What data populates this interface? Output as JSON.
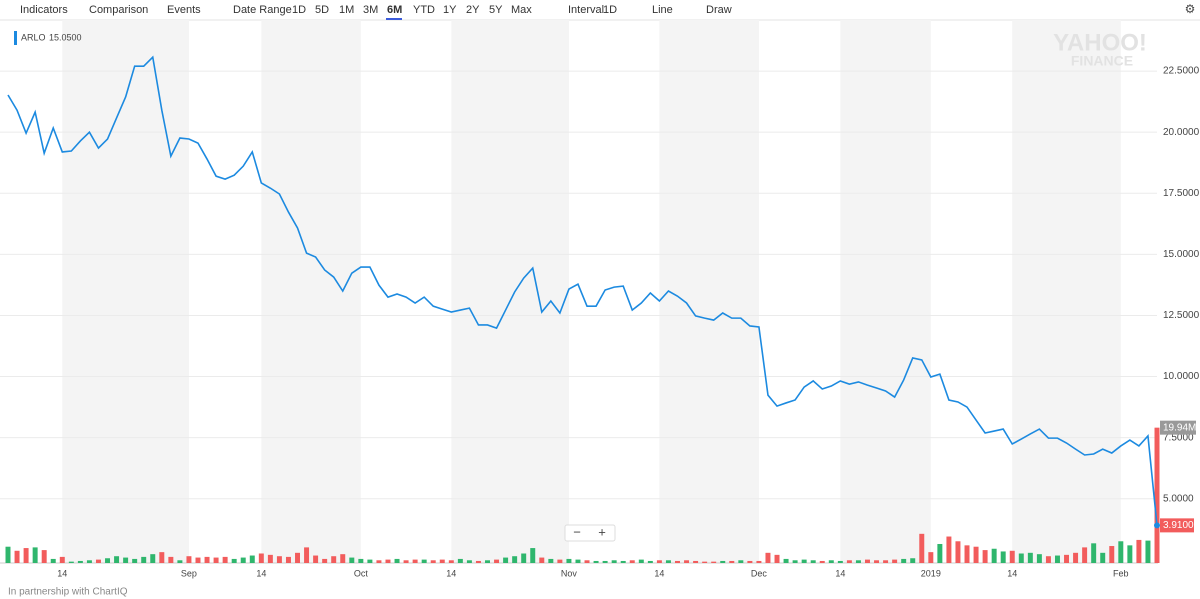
{
  "toolbar": [
    "Indicators",
    "Comparison",
    "Events",
    "Date Range",
    "1D",
    "5D",
    "1M",
    "3M",
    "6M",
    "YTD",
    "1Y",
    "2Y",
    "5Y",
    "Max",
    "Interval",
    "1D",
    "Line",
    "Draw"
  ],
  "watermark": [
    "YAHOO!",
    "FINANCE"
  ],
  "footer": "In partnership with ChartIQ",
  "chart_data": {
    "type": "line",
    "legend_value": "15.0500",
    "categories": [
      null,
      null,
      null,
      null,
      null,
      null,
      "14",
      null,
      null,
      null,
      null,
      null,
      null,
      null,
      null,
      null,
      null,
      null,
      null,
      null,
      "Sep",
      null,
      null,
      null,
      null,
      null,
      null,
      null,
      "14",
      null,
      null,
      null,
      null,
      null,
      null,
      null,
      null,
      null,
      null,
      "Oct",
      null,
      null,
      null,
      null,
      null,
      null,
      null,
      null,
      null,
      "14",
      null,
      null,
      null,
      null,
      null,
      null,
      null,
      null,
      null,
      null,
      null,
      null,
      "Nov",
      null,
      null,
      null,
      null,
      null,
      null,
      null,
      null,
      null,
      "14",
      null,
      null,
      null,
      null,
      null,
      null,
      null,
      null,
      null,
      null,
      "Dec",
      null,
      null,
      null,
      null,
      null,
      null,
      null,
      null,
      "14",
      null,
      null,
      null,
      null,
      null,
      null,
      null,
      null,
      null,
      "2019",
      null,
      null,
      null,
      null,
      null,
      null,
      null,
      null,
      "14",
      null,
      null,
      null,
      null,
      null,
      null,
      null,
      null,
      null,
      null,
      null,
      "Feb",
      null,
      null,
      null,
      null
    ],
    "series": [
      {
        "name": "ARLO",
        "color": "#1c8ae0",
        "values": [
          21.52,
          20.9,
          19.96,
          20.82,
          19.14,
          20.17,
          19.19,
          19.23,
          19.64,
          20.0,
          19.35,
          19.72,
          20.58,
          21.44,
          22.7,
          22.7,
          23.07,
          20.9,
          19.02,
          19.76,
          19.72,
          19.55,
          18.9,
          18.2,
          18.08,
          18.24,
          18.61,
          19.19,
          17.92,
          17.71,
          17.47,
          16.73,
          16.08,
          15.05,
          14.89,
          14.36,
          14.07,
          13.5,
          14.23,
          14.48,
          14.48,
          13.74,
          13.25,
          13.38,
          13.25,
          13.01,
          13.25,
          12.88,
          12.76,
          12.64,
          12.72,
          12.8,
          12.11,
          12.11,
          11.98,
          12.72,
          13.46,
          14.03,
          14.44,
          12.64,
          13.09,
          12.6,
          13.58,
          13.78,
          12.88,
          12.88,
          13.54,
          13.66,
          13.7,
          12.72,
          13.01,
          13.42,
          13.09,
          13.5,
          13.29,
          13.01,
          12.48,
          12.39,
          12.31,
          12.6,
          12.39,
          12.39,
          12.07,
          12.03,
          9.24,
          8.79,
          8.92,
          9.04,
          9.57,
          9.82,
          9.49,
          9.61,
          9.82,
          9.69,
          9.78,
          9.65,
          9.53,
          9.41,
          9.16,
          9.86,
          10.76,
          10.68,
          9.98,
          10.1,
          9.04,
          8.96,
          8.75,
          8.22,
          7.69,
          7.77,
          7.85,
          7.24,
          7.44,
          7.65,
          7.85,
          7.48,
          7.48,
          7.28,
          7.03,
          6.79,
          6.83,
          7.03,
          6.87,
          7.16,
          7.4,
          7.16,
          7.57,
          3.91
        ],
        "value_labels": [
          null,
          null,
          null,
          null,
          null,
          null,
          null,
          null,
          null,
          null,
          null,
          null,
          null,
          null,
          null,
          null,
          null,
          null,
          null,
          null,
          null,
          null,
          null,
          null,
          null,
          null,
          null,
          null,
          null,
          null,
          null,
          null,
          null,
          null,
          null,
          null,
          null,
          null,
          null,
          null,
          null,
          null,
          null,
          null,
          null,
          null,
          null,
          null,
          null,
          null,
          null,
          null,
          null,
          null,
          null,
          null,
          null,
          null,
          null,
          null,
          null,
          null,
          null,
          null,
          null,
          null,
          null,
          null,
          null,
          null,
          null,
          null,
          null,
          null,
          null,
          null,
          null,
          null,
          null,
          null,
          null,
          null,
          null,
          null,
          null,
          null,
          null,
          null,
          null,
          null,
          null,
          null,
          null,
          null,
          null,
          null,
          null,
          null,
          null,
          null,
          null,
          null,
          null,
          null,
          null,
          null,
          null,
          null,
          null,
          null,
          null,
          null,
          null,
          null,
          null,
          null,
          null,
          null,
          null,
          null,
          null,
          null,
          null,
          null,
          null,
          null,
          null,
          "3.9100"
        ]
      },
      {
        "name": "Volume",
        "axis": "y2",
        "up_color": "#2fb66d",
        "down_color": "#f25c5c",
        "values": [
          2.4,
          1.8,
          2.2,
          2.3,
          1.9,
          0.6,
          0.9,
          0.2,
          0.3,
          0.4,
          0.5,
          0.7,
          1.0,
          0.8,
          0.6,
          0.9,
          1.3,
          1.6,
          0.9,
          0.4,
          1.0,
          0.8,
          0.9,
          0.8,
          0.9,
          0.6,
          0.8,
          1.1,
          1.4,
          1.2,
          1.0,
          0.9,
          1.5,
          2.3,
          1.1,
          0.6,
          1.0,
          1.3,
          0.8,
          0.6,
          0.5,
          0.4,
          0.5,
          0.6,
          0.4,
          0.5,
          0.5,
          0.4,
          0.5,
          0.4,
          0.6,
          0.4,
          0.3,
          0.4,
          0.5,
          0.8,
          1.0,
          1.4,
          2.2,
          0.8,
          0.6,
          0.5,
          0.6,
          0.5,
          0.4,
          0.3,
          0.3,
          0.4,
          0.3,
          0.4,
          0.5,
          0.3,
          0.4,
          0.4,
          0.3,
          0.4,
          0.3,
          0.2,
          0.2,
          0.3,
          0.3,
          0.4,
          0.3,
          0.3,
          1.5,
          1.2,
          0.6,
          0.4,
          0.5,
          0.4,
          0.3,
          0.4,
          0.3,
          0.4,
          0.4,
          0.5,
          0.4,
          0.4,
          0.5,
          0.6,
          0.7,
          4.3,
          1.6,
          2.8,
          3.9,
          3.2,
          2.6,
          2.4,
          1.9,
          2.1,
          1.7,
          1.8,
          1.4,
          1.5,
          1.3,
          1.0,
          1.1,
          1.2,
          1.5,
          2.3,
          2.9,
          1.5,
          2.5,
          3.2,
          2.6,
          3.4,
          3.3,
          19.94
        ],
        "value_labels": [
          null,
          null,
          null,
          null,
          null,
          null,
          null,
          null,
          null,
          null,
          null,
          null,
          null,
          null,
          null,
          null,
          null,
          null,
          null,
          null,
          null,
          null,
          null,
          null,
          null,
          null,
          null,
          null,
          null,
          null,
          null,
          null,
          null,
          null,
          null,
          null,
          null,
          null,
          null,
          null,
          null,
          null,
          null,
          null,
          null,
          null,
          null,
          null,
          null,
          null,
          null,
          null,
          null,
          null,
          null,
          null,
          null,
          null,
          null,
          null,
          null,
          null,
          null,
          null,
          null,
          null,
          null,
          null,
          null,
          null,
          null,
          null,
          null,
          null,
          null,
          null,
          null,
          null,
          null,
          null,
          null,
          null,
          null,
          null,
          null,
          null,
          null,
          null,
          null,
          null,
          null,
          null,
          null,
          null,
          null,
          null,
          null,
          null,
          null,
          null,
          null,
          null,
          null,
          null,
          null,
          null,
          null,
          null,
          null,
          null,
          null,
          null,
          null,
          null,
          null,
          null,
          null,
          null,
          null,
          null,
          null,
          null,
          null,
          null,
          null,
          null,
          null,
          "19.94M"
        ]
      }
    ],
    "ylim": [
      2.37,
      24.59
    ],
    "yticks": [
      {
        "value": 5,
        "label": "5.0000"
      },
      {
        "value": 7.5,
        "label": "7.5000"
      },
      {
        "value": 10,
        "label": "10.0000"
      },
      {
        "value": 12.5,
        "label": "12.5000"
      },
      {
        "value": 15,
        "label": "15.0000"
      },
      {
        "value": 17.5,
        "label": "17.5000"
      },
      {
        "value": 20,
        "label": "20.0000"
      },
      {
        "value": 22.5,
        "label": "22.5000"
      }
    ],
    "y2lim": [
      0,
      80
    ],
    "grid": true
  }
}
